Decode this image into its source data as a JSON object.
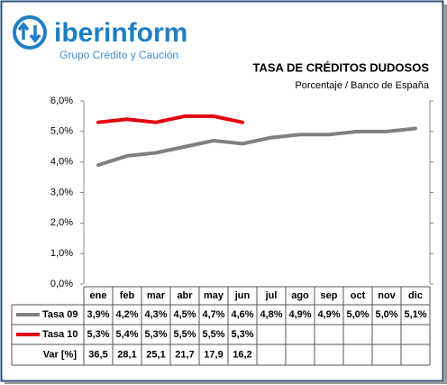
{
  "logo": {
    "brand": "iberinform",
    "tagline": "Grupo Crédito y Caución"
  },
  "chart_data": {
    "type": "line",
    "title": "TASA DE CRÉDITOS DUDOSOS",
    "subtitle": "Porcentaje / Banco de España",
    "categories": [
      "ene",
      "feb",
      "mar",
      "abr",
      "may",
      "jun",
      "jul",
      "ago",
      "sep",
      "oct",
      "nov",
      "dic"
    ],
    "series": [
      {
        "name": "Tasa 09",
        "color": "#808080",
        "values": [
          3.9,
          4.2,
          4.3,
          4.5,
          4.7,
          4.6,
          4.8,
          4.9,
          4.9,
          5.0,
          5.0,
          5.1
        ],
        "value_labels": [
          "3,9%",
          "4,2%",
          "4,3%",
          "4,5%",
          "4,7%",
          "4,6%",
          "4,8%",
          "4,9%",
          "4,9%",
          "5,0%",
          "5,0%",
          "5,1%"
        ]
      },
      {
        "name": "Tasa 10",
        "color": "#e3000f",
        "values": [
          5.3,
          5.4,
          5.3,
          5.5,
          5.5,
          5.3,
          null,
          null,
          null,
          null,
          null,
          null
        ],
        "value_labels": [
          "5,3%",
          "5,4%",
          "5,3%",
          "5,5%",
          "5,5%",
          "5,3%",
          null,
          null,
          null,
          null,
          null,
          null
        ]
      }
    ],
    "table_rows": [
      {
        "name": "Var [%]",
        "values": [
          36.5,
          28.1,
          25.1,
          21.7,
          17.9,
          16.2,
          null,
          null,
          null,
          null,
          null,
          null
        ],
        "value_labels": [
          "36,5",
          "28,1",
          "25,1",
          "21,7",
          "17,9",
          "16,2",
          null,
          null,
          null,
          null,
          null,
          null
        ]
      }
    ],
    "ylim": [
      0,
      6
    ],
    "yticks": [
      {
        "value": 0,
        "label": "0,0%"
      },
      {
        "value": 1,
        "label": "1,0%"
      },
      {
        "value": 2,
        "label": "2,0%"
      },
      {
        "value": 3,
        "label": "3,0%"
      },
      {
        "value": 4,
        "label": "4,0%"
      },
      {
        "value": 5,
        "label": "5,0%"
      },
      {
        "value": 6,
        "label": "6,0%"
      }
    ],
    "grid": false
  }
}
